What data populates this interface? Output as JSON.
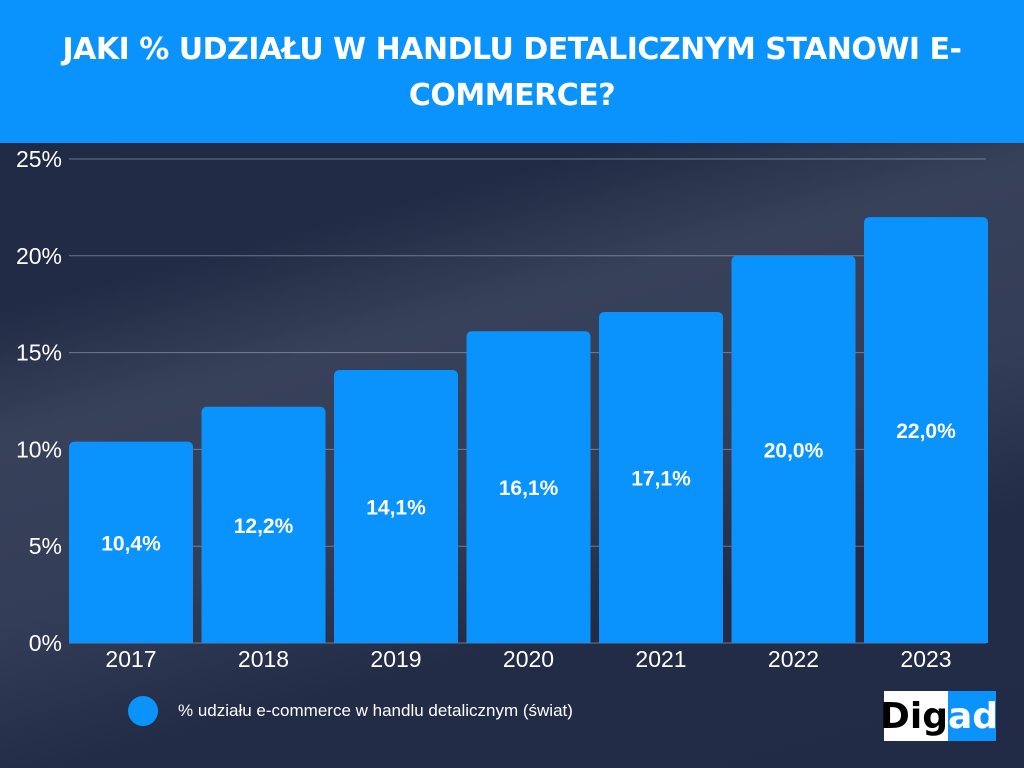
{
  "title": "JAKI % UDZIAŁU W HANDLU DETALICZNYM STANOWI E-COMMERCE?",
  "logo": {
    "text": "Digad",
    "part1": "Dig",
    "part2": "ad"
  },
  "colors": {
    "bar": "#0a93fc",
    "header": "#0a93fc",
    "background": "#222b45"
  },
  "chart_data": {
    "type": "bar",
    "categories": [
      "2017",
      "2018",
      "2019",
      "2020",
      "2021",
      "2022",
      "2023"
    ],
    "series": [
      {
        "name": "% udziału e-commerce w handlu detalicznym (świat)",
        "values": [
          10.4,
          12.2,
          14.1,
          16.1,
          17.1,
          20.0,
          22.0
        ]
      }
    ],
    "data_labels": [
      "10,4%",
      "12,2%",
      "14,1%",
      "16,1%",
      "17,1%",
      "20,0%",
      "22,0%"
    ],
    "yticks": [
      0,
      5,
      10,
      15,
      20,
      25
    ],
    "ytick_labels": [
      "0%",
      "5%",
      "10%",
      "15%",
      "20%",
      "25%"
    ],
    "ylim": [
      0,
      25
    ],
    "grid": true,
    "legend_position": "bottom"
  }
}
